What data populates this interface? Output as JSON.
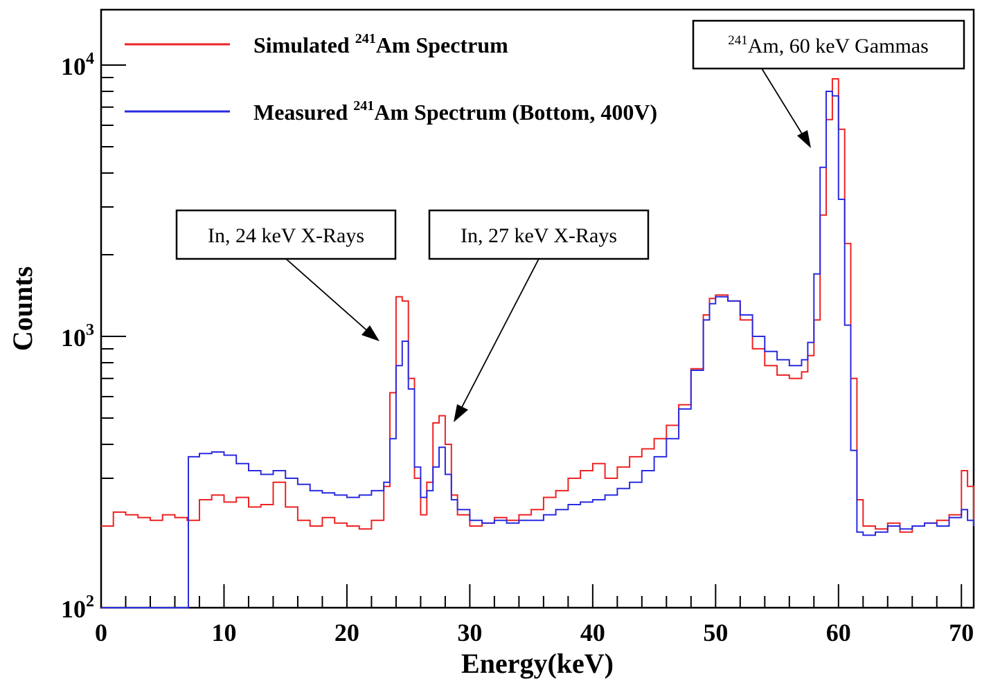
{
  "chart_data": {
    "type": "line",
    "title": "",
    "xlabel": "Energy(keV)",
    "ylabel": "Counts",
    "xlim": [
      0,
      71
    ],
    "ylim": [
      100,
      16000
    ],
    "yscale": "log",
    "grid": false,
    "legend_position": "top-left",
    "x_ticks": [
      {
        "value": 0,
        "label": "0"
      },
      {
        "value": 10,
        "label": "10"
      },
      {
        "value": 20,
        "label": "20"
      },
      {
        "value": 30,
        "label": "30"
      },
      {
        "value": 40,
        "label": "40"
      },
      {
        "value": 50,
        "label": "50"
      },
      {
        "value": 60,
        "label": "60"
      },
      {
        "value": 70,
        "label": "70"
      }
    ],
    "y_ticks": [
      {
        "value": 100,
        "base": "10",
        "exp": "2"
      },
      {
        "value": 1000,
        "base": "10",
        "exp": "3"
      },
      {
        "value": 10000,
        "base": "10",
        "exp": "4"
      }
    ],
    "series": [
      {
        "name_pre": "Simulated ",
        "name_sup": "241",
        "name_post": "Am Spectrum",
        "color": "#ee2222",
        "points": [
          [
            0,
            200
          ],
          [
            1,
            225
          ],
          [
            2,
            220
          ],
          [
            3,
            215
          ],
          [
            4,
            210
          ],
          [
            5,
            220
          ],
          [
            6,
            215
          ],
          [
            7,
            210
          ],
          [
            8,
            250
          ],
          [
            9,
            260
          ],
          [
            10,
            245
          ],
          [
            11,
            255
          ],
          [
            12,
            235
          ],
          [
            13,
            240
          ],
          [
            14,
            290
          ],
          [
            15,
            235
          ],
          [
            16,
            210
          ],
          [
            17,
            200
          ],
          [
            18,
            215
          ],
          [
            19,
            205
          ],
          [
            20,
            200
          ],
          [
            21,
            195
          ],
          [
            22,
            210
          ],
          [
            23,
            280
          ],
          [
            23.5,
            620
          ],
          [
            24,
            1400
          ],
          [
            24.5,
            1350
          ],
          [
            25,
            700
          ],
          [
            25.5,
            300
          ],
          [
            26,
            220
          ],
          [
            26.5,
            290
          ],
          [
            27,
            480
          ],
          [
            27.5,
            510
          ],
          [
            28,
            400
          ],
          [
            28.5,
            260
          ],
          [
            29,
            220
          ],
          [
            30,
            200
          ],
          [
            31,
            205
          ],
          [
            32,
            215
          ],
          [
            33,
            210
          ],
          [
            34,
            220
          ],
          [
            35,
            230
          ],
          [
            36,
            255
          ],
          [
            37,
            270
          ],
          [
            38,
            300
          ],
          [
            39,
            320
          ],
          [
            40,
            340
          ],
          [
            41,
            300
          ],
          [
            42,
            330
          ],
          [
            43,
            360
          ],
          [
            44,
            385
          ],
          [
            45,
            420
          ],
          [
            46,
            470
          ],
          [
            47,
            560
          ],
          [
            48,
            760
          ],
          [
            49,
            1200
          ],
          [
            49.5,
            1380
          ],
          [
            50,
            1420
          ],
          [
            51,
            1350
          ],
          [
            52,
            1150
          ],
          [
            53,
            900
          ],
          [
            54,
            780
          ],
          [
            55,
            720
          ],
          [
            56,
            700
          ],
          [
            57,
            740
          ],
          [
            57.5,
            850
          ],
          [
            58,
            1150
          ],
          [
            58.5,
            2800
          ],
          [
            59,
            6300
          ],
          [
            59.5,
            8900
          ],
          [
            60,
            5800
          ],
          [
            60.5,
            2200
          ],
          [
            61,
            700
          ],
          [
            61.5,
            250
          ],
          [
            62,
            200
          ],
          [
            63,
            195
          ],
          [
            64,
            205
          ],
          [
            65,
            190
          ],
          [
            66,
            200
          ],
          [
            67,
            205
          ],
          [
            68,
            210
          ],
          [
            69,
            220
          ],
          [
            70,
            320
          ],
          [
            70.5,
            280
          ],
          [
            71,
            205
          ]
        ]
      },
      {
        "name_pre": "Measured ",
        "name_sup": "241",
        "name_post": "Am Spectrum (Bottom, 400V)",
        "color": "#2a2ae0",
        "points": [
          [
            0,
            100
          ],
          [
            1,
            100
          ],
          [
            2,
            100
          ],
          [
            3,
            100
          ],
          [
            4,
            100
          ],
          [
            5,
            100
          ],
          [
            6,
            100
          ],
          [
            7,
            100
          ],
          [
            7.1,
            360
          ],
          [
            8,
            370
          ],
          [
            9,
            375
          ],
          [
            10,
            365
          ],
          [
            11,
            340
          ],
          [
            12,
            320
          ],
          [
            13,
            310
          ],
          [
            14,
            320
          ],
          [
            15,
            300
          ],
          [
            16,
            285
          ],
          [
            17,
            270
          ],
          [
            18,
            265
          ],
          [
            19,
            260
          ],
          [
            20,
            255
          ],
          [
            21,
            260
          ],
          [
            22,
            270
          ],
          [
            23,
            290
          ],
          [
            23.5,
            420
          ],
          [
            24,
            780
          ],
          [
            24.5,
            960
          ],
          [
            25,
            640
          ],
          [
            25.5,
            330
          ],
          [
            26,
            255
          ],
          [
            26.5,
            270
          ],
          [
            27,
            330
          ],
          [
            27.5,
            390
          ],
          [
            28,
            310
          ],
          [
            28.5,
            250
          ],
          [
            29,
            230
          ],
          [
            30,
            210
          ],
          [
            31,
            205
          ],
          [
            32,
            210
          ],
          [
            33,
            205
          ],
          [
            34,
            210
          ],
          [
            35,
            210
          ],
          [
            36,
            220
          ],
          [
            37,
            230
          ],
          [
            38,
            240
          ],
          [
            39,
            245
          ],
          [
            40,
            250
          ],
          [
            41,
            260
          ],
          [
            42,
            275
          ],
          [
            43,
            290
          ],
          [
            44,
            320
          ],
          [
            45,
            360
          ],
          [
            46,
            420
          ],
          [
            47,
            540
          ],
          [
            48,
            750
          ],
          [
            49,
            1150
          ],
          [
            49.5,
            1320
          ],
          [
            50,
            1400
          ],
          [
            51,
            1350
          ],
          [
            52,
            1200
          ],
          [
            53,
            1000
          ],
          [
            54,
            880
          ],
          [
            55,
            820
          ],
          [
            56,
            780
          ],
          [
            57,
            820
          ],
          [
            57.5,
            950
          ],
          [
            58,
            1700
          ],
          [
            58.5,
            4200
          ],
          [
            59,
            8000
          ],
          [
            59.5,
            7700
          ],
          [
            60,
            3200
          ],
          [
            60.5,
            1100
          ],
          [
            61,
            380
          ],
          [
            61.5,
            190
          ],
          [
            62,
            185
          ],
          [
            63,
            190
          ],
          [
            64,
            200
          ],
          [
            65,
            195
          ],
          [
            66,
            200
          ],
          [
            67,
            205
          ],
          [
            68,
            200
          ],
          [
            69,
            215
          ],
          [
            70,
            230
          ],
          [
            70.5,
            210
          ],
          [
            71,
            200
          ]
        ]
      }
    ],
    "annotations": [
      {
        "text": "In, 24 keV X-Rays",
        "target": [
          22.8,
          1000
        ]
      },
      {
        "text": "In, 27 keV X-Rays",
        "target": [
          28.5,
          460
        ]
      },
      {
        "sup": "241",
        "text": "Am, 60 keV Gammas",
        "target": [
          57.2,
          5600
        ]
      }
    ]
  }
}
